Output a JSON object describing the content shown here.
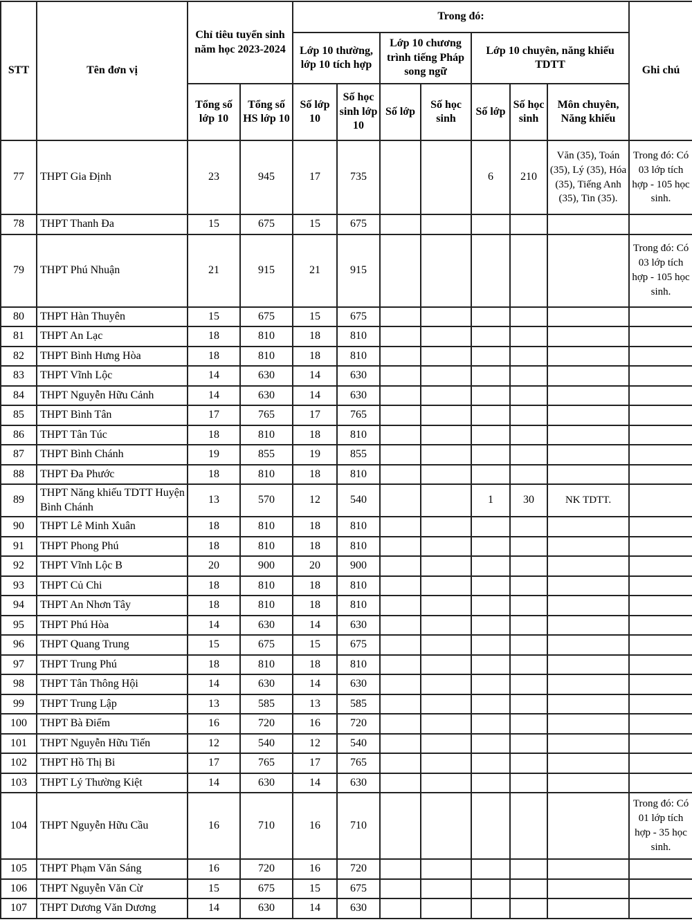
{
  "header": {
    "stt": "STT",
    "ten_don_vi": "Tên đơn vị",
    "chi_tieu": "Chỉ tiêu tuyển sinh năm học 2023-2024",
    "trong_do": "Trong đó:",
    "lop10_thuong": "Lớp 10 thường, lớp 10 tích hợp",
    "lop10_phap": "Lớp 10 chương trình tiếng Pháp song ngữ",
    "lop10_chuyen": "Lớp 10 chuyên, năng khiếu TDTT",
    "ghi_chu": "Ghi chú",
    "sub": {
      "tong_so_lop": "Tổng số lớp 10",
      "tong_so_hs": "Tổng số HS lớp 10",
      "thuong_so_lop": "Số lớp 10",
      "thuong_so_hs": "Số học sinh lớp 10",
      "phap_so_lop": "Số lớp",
      "phap_so_hs": "Số học sinh",
      "chuyen_so_lop": "Số lớp",
      "chuyen_so_hs": "Số học sinh",
      "mon_chuyen": "Môn chuyên, Năng khiếu"
    }
  },
  "rows": [
    {
      "stt": "77",
      "name": "THPT Gia Định",
      "tong_lop": "23",
      "tong_hs": "945",
      "th_lop": "17",
      "th_hs": "735",
      "ph_lop": "",
      "ph_hs": "",
      "ch_lop": "6",
      "ch_hs": "210",
      "mon": "Văn (35), Toán (35), Lý (35), Hóa (35), Tiếng Anh (35), Tin (35).",
      "note": "Trong đó: Có 03 lớp tích hợp - 105 học sinh."
    },
    {
      "stt": "78",
      "name": "THPT Thanh Đa",
      "tong_lop": "15",
      "tong_hs": "675",
      "th_lop": "15",
      "th_hs": "675",
      "ph_lop": "",
      "ph_hs": "",
      "ch_lop": "",
      "ch_hs": "",
      "mon": "",
      "note": ""
    },
    {
      "stt": "79",
      "name": "THPT Phú Nhuận",
      "tong_lop": "21",
      "tong_hs": "915",
      "th_lop": "21",
      "th_hs": "915",
      "ph_lop": "",
      "ph_hs": "",
      "ch_lop": "",
      "ch_hs": "",
      "mon": "",
      "note": "Trong đó: Có 03 lớp tích hợp - 105 học sinh."
    },
    {
      "stt": "80",
      "name": "THPT Hàn Thuyên",
      "tong_lop": "15",
      "tong_hs": "675",
      "th_lop": "15",
      "th_hs": "675",
      "ph_lop": "",
      "ph_hs": "",
      "ch_lop": "",
      "ch_hs": "",
      "mon": "",
      "note": ""
    },
    {
      "stt": "81",
      "name": "THPT An Lạc",
      "tong_lop": "18",
      "tong_hs": "810",
      "th_lop": "18",
      "th_hs": "810",
      "ph_lop": "",
      "ph_hs": "",
      "ch_lop": "",
      "ch_hs": "",
      "mon": "",
      "note": ""
    },
    {
      "stt": "82",
      "name": "THPT Bình Hưng Hòa",
      "tong_lop": "18",
      "tong_hs": "810",
      "th_lop": "18",
      "th_hs": "810",
      "ph_lop": "",
      "ph_hs": "",
      "ch_lop": "",
      "ch_hs": "",
      "mon": "",
      "note": ""
    },
    {
      "stt": "83",
      "name": "THPT Vĩnh Lộc",
      "tong_lop": "14",
      "tong_hs": "630",
      "th_lop": "14",
      "th_hs": "630",
      "ph_lop": "",
      "ph_hs": "",
      "ch_lop": "",
      "ch_hs": "",
      "mon": "",
      "note": ""
    },
    {
      "stt": "84",
      "name": "THPT Nguyễn Hữu Cảnh",
      "tong_lop": "14",
      "tong_hs": "630",
      "th_lop": "14",
      "th_hs": "630",
      "ph_lop": "",
      "ph_hs": "",
      "ch_lop": "",
      "ch_hs": "",
      "mon": "",
      "note": ""
    },
    {
      "stt": "85",
      "name": "THPT Bình Tân",
      "tong_lop": "17",
      "tong_hs": "765",
      "th_lop": "17",
      "th_hs": "765",
      "ph_lop": "",
      "ph_hs": "",
      "ch_lop": "",
      "ch_hs": "",
      "mon": "",
      "note": ""
    },
    {
      "stt": "86",
      "name": "THPT Tân Túc",
      "tong_lop": "18",
      "tong_hs": "810",
      "th_lop": "18",
      "th_hs": "810",
      "ph_lop": "",
      "ph_hs": "",
      "ch_lop": "",
      "ch_hs": "",
      "mon": "",
      "note": ""
    },
    {
      "stt": "87",
      "name": "THPT Bình Chánh",
      "tong_lop": "19",
      "tong_hs": "855",
      "th_lop": "19",
      "th_hs": "855",
      "ph_lop": "",
      "ph_hs": "",
      "ch_lop": "",
      "ch_hs": "",
      "mon": "",
      "note": ""
    },
    {
      "stt": "88",
      "name": "THPT Đa Phước",
      "tong_lop": "18",
      "tong_hs": "810",
      "th_lop": "18",
      "th_hs": "810",
      "ph_lop": "",
      "ph_hs": "",
      "ch_lop": "",
      "ch_hs": "",
      "mon": "",
      "note": ""
    },
    {
      "stt": "89",
      "name": "THPT Năng khiếu TDTT Huyện Bình Chánh",
      "tong_lop": "13",
      "tong_hs": "570",
      "th_lop": "12",
      "th_hs": "540",
      "ph_lop": "",
      "ph_hs": "",
      "ch_lop": "1",
      "ch_hs": "30",
      "mon": "NK TDTT.",
      "note": ""
    },
    {
      "stt": "90",
      "name": "THPT Lê Minh Xuân",
      "tong_lop": "18",
      "tong_hs": "810",
      "th_lop": "18",
      "th_hs": "810",
      "ph_lop": "",
      "ph_hs": "",
      "ch_lop": "",
      "ch_hs": "",
      "mon": "",
      "note": ""
    },
    {
      "stt": "91",
      "name": "THPT Phong Phú",
      "tong_lop": "18",
      "tong_hs": "810",
      "th_lop": "18",
      "th_hs": "810",
      "ph_lop": "",
      "ph_hs": "",
      "ch_lop": "",
      "ch_hs": "",
      "mon": "",
      "note": ""
    },
    {
      "stt": "92",
      "name": "THPT Vĩnh Lộc B",
      "tong_lop": "20",
      "tong_hs": "900",
      "th_lop": "20",
      "th_hs": "900",
      "ph_lop": "",
      "ph_hs": "",
      "ch_lop": "",
      "ch_hs": "",
      "mon": "",
      "note": ""
    },
    {
      "stt": "93",
      "name": "THPT Củ Chi",
      "tong_lop": "18",
      "tong_hs": "810",
      "th_lop": "18",
      "th_hs": "810",
      "ph_lop": "",
      "ph_hs": "",
      "ch_lop": "",
      "ch_hs": "",
      "mon": "",
      "note": ""
    },
    {
      "stt": "94",
      "name": "THPT An Nhơn Tây",
      "tong_lop": "18",
      "tong_hs": "810",
      "th_lop": "18",
      "th_hs": "810",
      "ph_lop": "",
      "ph_hs": "",
      "ch_lop": "",
      "ch_hs": "",
      "mon": "",
      "note": ""
    },
    {
      "stt": "95",
      "name": "THPT Phú Hòa",
      "tong_lop": "14",
      "tong_hs": "630",
      "th_lop": "14",
      "th_hs": "630",
      "ph_lop": "",
      "ph_hs": "",
      "ch_lop": "",
      "ch_hs": "",
      "mon": "",
      "note": ""
    },
    {
      "stt": "96",
      "name": "THPT Quang Trung",
      "tong_lop": "15",
      "tong_hs": "675",
      "th_lop": "15",
      "th_hs": "675",
      "ph_lop": "",
      "ph_hs": "",
      "ch_lop": "",
      "ch_hs": "",
      "mon": "",
      "note": ""
    },
    {
      "stt": "97",
      "name": "THPT Trung Phú",
      "tong_lop": "18",
      "tong_hs": "810",
      "th_lop": "18",
      "th_hs": "810",
      "ph_lop": "",
      "ph_hs": "",
      "ch_lop": "",
      "ch_hs": "",
      "mon": "",
      "note": ""
    },
    {
      "stt": "98",
      "name": "THPT Tân Thông Hội",
      "tong_lop": "14",
      "tong_hs": "630",
      "th_lop": "14",
      "th_hs": "630",
      "ph_lop": "",
      "ph_hs": "",
      "ch_lop": "",
      "ch_hs": "",
      "mon": "",
      "note": ""
    },
    {
      "stt": "99",
      "name": "THPT Trung Lập",
      "tong_lop": "13",
      "tong_hs": "585",
      "th_lop": "13",
      "th_hs": "585",
      "ph_lop": "",
      "ph_hs": "",
      "ch_lop": "",
      "ch_hs": "",
      "mon": "",
      "note": ""
    },
    {
      "stt": "100",
      "name": "THPT Bà Điểm",
      "tong_lop": "16",
      "tong_hs": "720",
      "th_lop": "16",
      "th_hs": "720",
      "ph_lop": "",
      "ph_hs": "",
      "ch_lop": "",
      "ch_hs": "",
      "mon": "",
      "note": ""
    },
    {
      "stt": "101",
      "name": "THPT Nguyễn Hữu Tiến",
      "tong_lop": "12",
      "tong_hs": "540",
      "th_lop": "12",
      "th_hs": "540",
      "ph_lop": "",
      "ph_hs": "",
      "ch_lop": "",
      "ch_hs": "",
      "mon": "",
      "note": ""
    },
    {
      "stt": "102",
      "name": "THPT Hồ Thị Bi",
      "tong_lop": "17",
      "tong_hs": "765",
      "th_lop": "17",
      "th_hs": "765",
      "ph_lop": "",
      "ph_hs": "",
      "ch_lop": "",
      "ch_hs": "",
      "mon": "",
      "note": ""
    },
    {
      "stt": "103",
      "name": "THPT Lý Thường Kiệt",
      "tong_lop": "14",
      "tong_hs": "630",
      "th_lop": "14",
      "th_hs": "630",
      "ph_lop": "",
      "ph_hs": "",
      "ch_lop": "",
      "ch_hs": "",
      "mon": "",
      "note": ""
    },
    {
      "stt": "104",
      "name": "THPT Nguyễn Hữu Cầu",
      "tong_lop": "16",
      "tong_hs": "710",
      "th_lop": "16",
      "th_hs": "710",
      "ph_lop": "",
      "ph_hs": "",
      "ch_lop": "",
      "ch_hs": "",
      "mon": "",
      "note": "Trong đó: Có 01 lớp tích hợp - 35 học sinh."
    },
    {
      "stt": "105",
      "name": "THPT Phạm Văn Sáng",
      "tong_lop": "16",
      "tong_hs": "720",
      "th_lop": "16",
      "th_hs": "720",
      "ph_lop": "",
      "ph_hs": "",
      "ch_lop": "",
      "ch_hs": "",
      "mon": "",
      "note": ""
    },
    {
      "stt": "106",
      "name": "THPT Nguyễn Văn Cừ",
      "tong_lop": "15",
      "tong_hs": "675",
      "th_lop": "15",
      "th_hs": "675",
      "ph_lop": "",
      "ph_hs": "",
      "ch_lop": "",
      "ch_hs": "",
      "mon": "",
      "note": ""
    },
    {
      "stt": "107",
      "name": "THPT Dương Văn Dương",
      "tong_lop": "14",
      "tong_hs": "630",
      "th_lop": "14",
      "th_hs": "630",
      "ph_lop": "",
      "ph_hs": "",
      "ch_lop": "",
      "ch_hs": "",
      "mon": "",
      "note": ""
    }
  ]
}
